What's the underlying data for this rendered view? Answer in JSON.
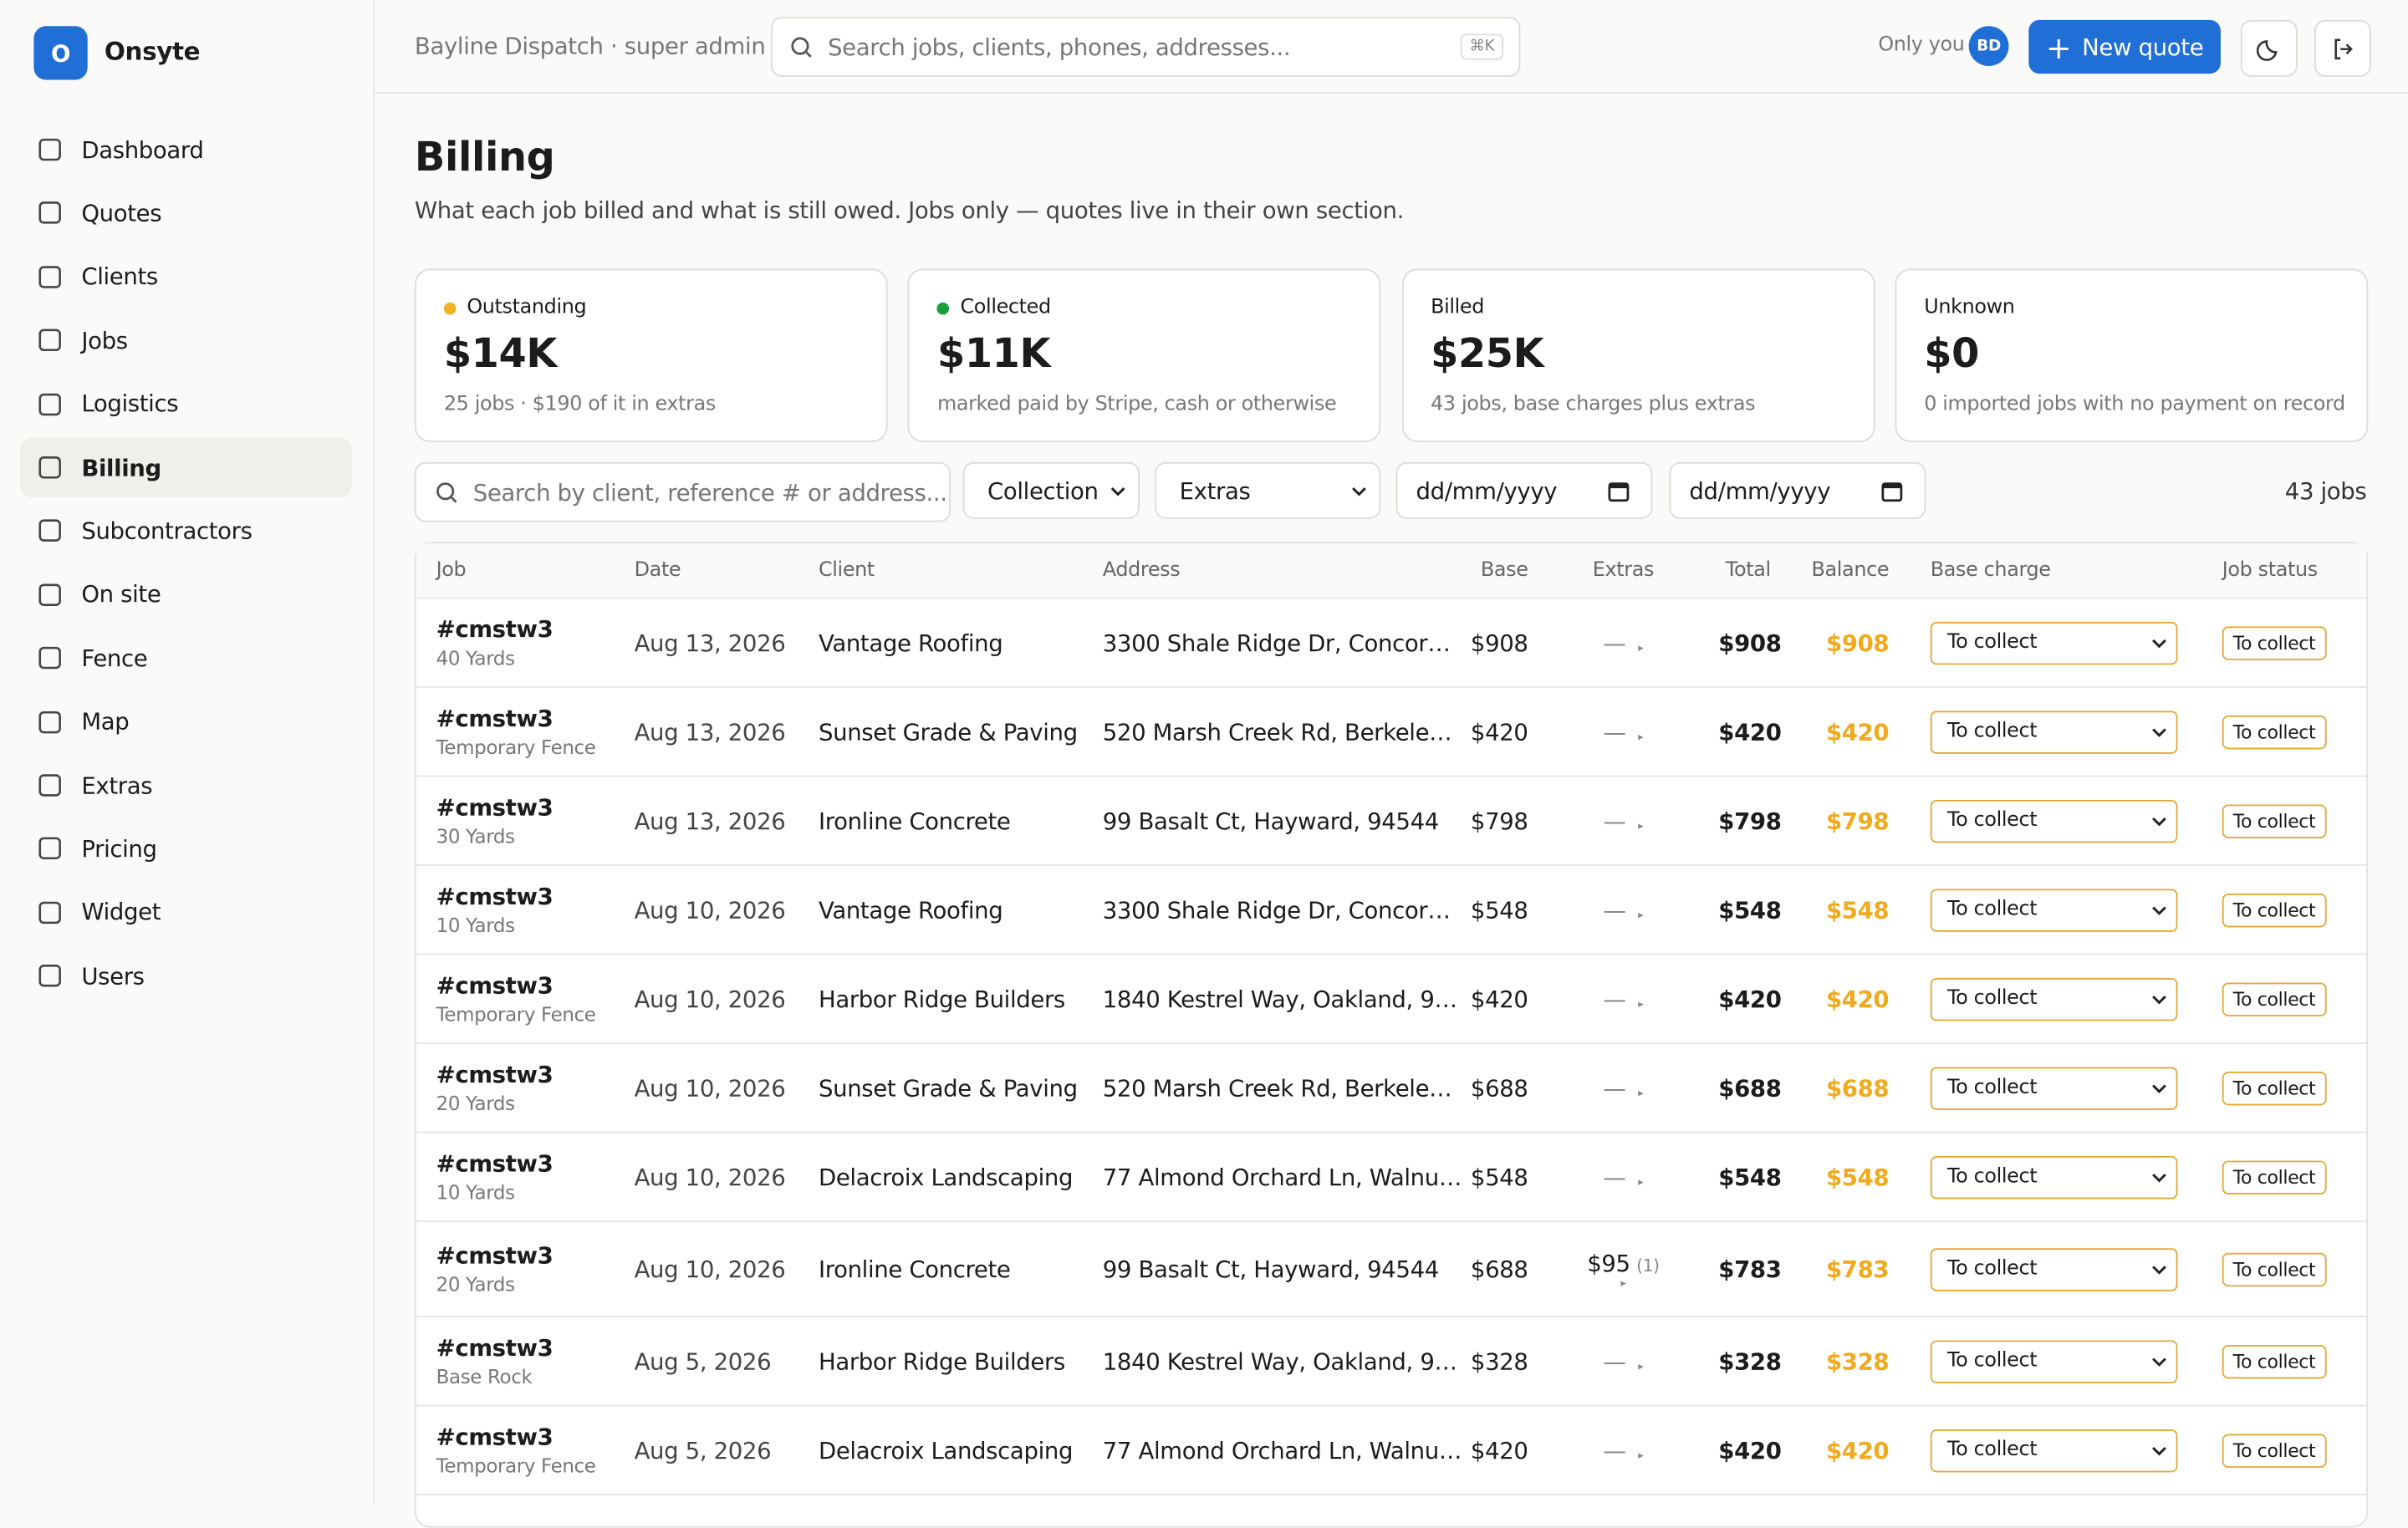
{
  "sidebar": {
    "brand_initial": "O",
    "brand": "Onsyte",
    "nav": [
      "Dashboard",
      "Quotes",
      "Clients",
      "Jobs",
      "Logistics",
      "Billing",
      "Subcontractors",
      "On site",
      "Fence",
      "Map",
      "Extras",
      "Pricing",
      "Widget",
      "Users"
    ],
    "active": 5
  },
  "topbar": {
    "org": "Bayline Dispatch · super admin",
    "search_placeholder": "Search jobs, clients, phones, addresses...",
    "shortcut": "⌘K",
    "visibility": "Only you",
    "avatar": "BD",
    "new_quote": "New quote"
  },
  "page": {
    "title": "Billing",
    "subtitle": "What each job billed and what is still owed. Jobs only — quotes live in their own section."
  },
  "cards": [
    {
      "label": "Outstanding",
      "value": "$14K",
      "note": "25 jobs · $190 of it in extras",
      "dot": "#f0b323"
    },
    {
      "label": "Collected",
      "value": "$11K",
      "note": "marked paid by Stripe, cash or otherwise",
      "dot": "#1a9e3a"
    },
    {
      "label": "Billed",
      "value": "$25K",
      "note": "43 jobs, base charges plus extras"
    },
    {
      "label": "Unknown",
      "value": "$0",
      "note": "0 imported jobs with no payment on record"
    }
  ],
  "filters": {
    "search_placeholder": "Search by client, reference # or address...",
    "collection": "Collection",
    "extras": "Extras",
    "date_from": "dd/mm/yyyy",
    "date_to": "dd/mm/yyyy",
    "count": "43 jobs"
  },
  "table": {
    "headers": [
      "Job",
      "Date",
      "Client",
      "Address",
      "Base",
      "Extras",
      "Total",
      "Balance",
      "Base charge",
      "Job status"
    ],
    "rows": [
      {
        "job": "#cmstw3",
        "item": "40 Yards",
        "date": "Aug 13, 2026",
        "client": "Vantage Roofing",
        "address": "3300 Shale Ridge Dr, Concor…",
        "base": "$908",
        "extras": "—",
        "total": "$908",
        "balance": "$908",
        "base_charge": "To collect",
        "status": "To collect"
      },
      {
        "job": "#cmstw3",
        "item": "Temporary Fence",
        "date": "Aug 13, 2026",
        "client": "Sunset Grade & Paving",
        "address": "520 Marsh Creek Rd, Berkele…",
        "base": "$420",
        "extras": "—",
        "total": "$420",
        "balance": "$420",
        "base_charge": "To collect",
        "status": "To collect"
      },
      {
        "job": "#cmstw3",
        "item": "30 Yards",
        "date": "Aug 13, 2026",
        "client": "Ironline Concrete",
        "address": "99 Basalt Ct, Hayward, 94544",
        "base": "$798",
        "extras": "—",
        "total": "$798",
        "balance": "$798",
        "base_charge": "To collect",
        "status": "To collect"
      },
      {
        "job": "#cmstw3",
        "item": "10 Yards",
        "date": "Aug 10, 2026",
        "client": "Vantage Roofing",
        "address": "3300 Shale Ridge Dr, Concor…",
        "base": "$548",
        "extras": "—",
        "total": "$548",
        "balance": "$548",
        "base_charge": "To collect",
        "status": "To collect"
      },
      {
        "job": "#cmstw3",
        "item": "Temporary Fence",
        "date": "Aug 10, 2026",
        "client": "Harbor Ridge Builders",
        "address": "1840 Kestrel Way, Oakland, 9…",
        "base": "$420",
        "extras": "—",
        "total": "$420",
        "balance": "$420",
        "base_charge": "To collect",
        "status": "To collect"
      },
      {
        "job": "#cmstw3",
        "item": "20 Yards",
        "date": "Aug 10, 2026",
        "client": "Sunset Grade & Paving",
        "address": "520 Marsh Creek Rd, Berkele…",
        "base": "$688",
        "extras": "—",
        "total": "$688",
        "balance": "$688",
        "base_charge": "To collect",
        "status": "To collect"
      },
      {
        "job": "#cmstw3",
        "item": "10 Yards",
        "date": "Aug 10, 2026",
        "client": "Delacroix Landscaping",
        "address": "77 Almond Orchard Ln, Walnu…",
        "base": "$548",
        "extras": "—",
        "total": "$548",
        "balance": "$548",
        "base_charge": "To collect",
        "status": "To collect"
      },
      {
        "job": "#cmstw3",
        "item": "20 Yards",
        "date": "Aug 10, 2026",
        "client": "Ironline Concrete",
        "address": "99 Basalt Ct, Hayward, 94544",
        "base": "$688",
        "extras": "$95",
        "extras_count": "(1)",
        "total": "$783",
        "balance": "$783",
        "base_charge": "To collect",
        "status": "To collect"
      },
      {
        "job": "#cmstw3",
        "item": "Base Rock",
        "date": "Aug 5, 2026",
        "client": "Harbor Ridge Builders",
        "address": "1840 Kestrel Way, Oakland, 9…",
        "base": "$328",
        "extras": "—",
        "total": "$328",
        "balance": "$328",
        "base_charge": "To collect",
        "status": "To collect"
      },
      {
        "job": "#cmstw3",
        "item": "Temporary Fence",
        "date": "Aug 5, 2026",
        "client": "Delacroix Landscaping",
        "address": "77 Almond Orchard Ln, Walnu…",
        "base": "$420",
        "extras": "—",
        "total": "$420",
        "balance": "$420",
        "base_charge": "To collect",
        "status": "To collect"
      }
    ]
  }
}
